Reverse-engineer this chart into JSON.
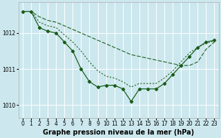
{
  "background_color": "#cce8ee",
  "grid_color": "#ffffff",
  "line_color": "#1a5c1a",
  "xlabel": "Graphe pression niveau de la mer (hPa)",
  "xlabel_fontsize": 7,
  "tick_fontsize": 5.5,
  "xlim": [
    -0.5,
    23.5
  ],
  "ylim": [
    1009.65,
    1012.85
  ],
  "yticks": [
    1010,
    1011,
    1012
  ],
  "xticks": [
    0,
    1,
    2,
    3,
    4,
    5,
    6,
    7,
    8,
    9,
    10,
    11,
    12,
    13,
    14,
    15,
    16,
    17,
    18,
    19,
    20,
    21,
    22,
    23
  ],
  "series1_x": [
    0,
    1,
    2,
    3,
    4,
    5,
    6,
    7,
    8,
    9,
    10,
    11,
    12,
    13,
    14,
    15,
    16,
    17,
    18,
    19,
    20,
    21,
    22,
    23
  ],
  "series1_y": [
    1012.6,
    1012.6,
    1012.45,
    1012.35,
    1012.3,
    1012.2,
    1012.1,
    1012.0,
    1011.9,
    1011.8,
    1011.7,
    1011.6,
    1011.5,
    1011.4,
    1011.35,
    1011.3,
    1011.25,
    1011.2,
    1011.15,
    1011.1,
    1011.1,
    1011.2,
    1011.55,
    1011.75
  ],
  "series2_x": [
    0,
    1,
    2,
    3,
    4,
    5,
    6,
    7,
    8,
    9,
    10,
    11,
    12,
    13,
    14,
    15,
    16,
    17,
    18,
    19,
    20,
    21,
    22,
    23
  ],
  "series2_y": [
    1012.6,
    1012.6,
    1012.3,
    1012.2,
    1012.15,
    1011.95,
    1011.75,
    1011.5,
    1011.2,
    1010.95,
    1010.8,
    1010.75,
    1010.65,
    1010.5,
    1010.6,
    1010.6,
    1010.6,
    1010.75,
    1010.95,
    1011.2,
    1011.45,
    1011.6,
    1011.72,
    1011.78
  ],
  "series3_x": [
    0,
    1,
    2,
    3,
    4,
    5,
    6,
    7,
    8,
    9,
    10,
    11,
    12,
    13,
    14,
    15,
    16,
    17,
    18,
    19,
    20,
    21,
    22,
    23
  ],
  "series3_y": [
    1012.6,
    1012.6,
    1012.15,
    1012.05,
    1012.0,
    1011.75,
    1011.5,
    1011.0,
    1010.65,
    1010.5,
    1010.55,
    1010.55,
    1010.45,
    1010.1,
    1010.45,
    1010.45,
    1010.45,
    1010.6,
    1010.85,
    1011.1,
    1011.35,
    1011.6,
    1011.75,
    1011.8
  ]
}
